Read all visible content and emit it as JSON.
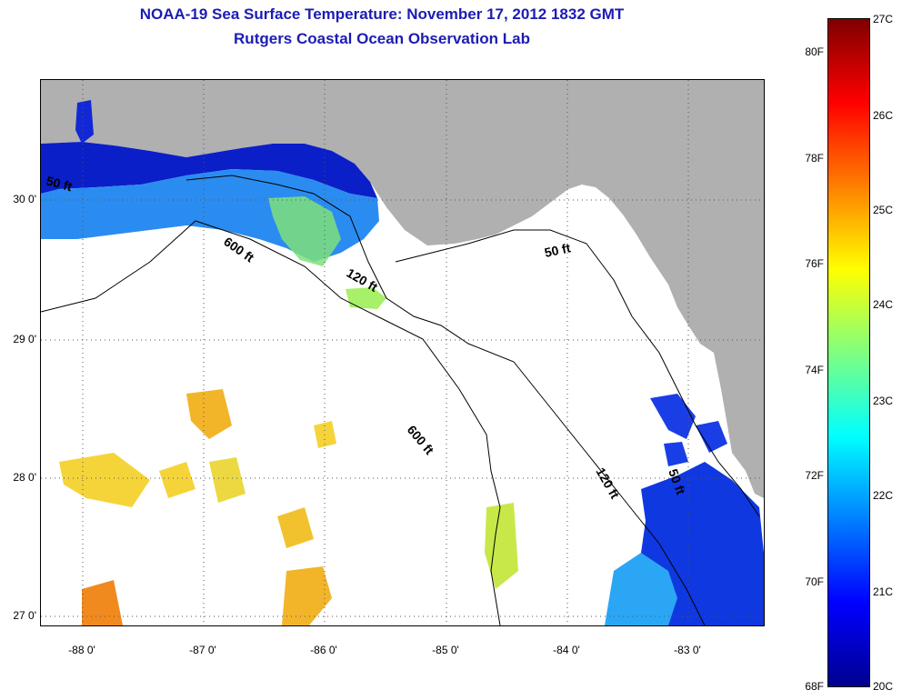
{
  "title": {
    "line1": "NOAA-19 Sea Surface Temperature:  November 17, 2012 1832 GMT",
    "line2": "Rutgers Coastal Ocean Observation Lab"
  },
  "map": {
    "lat_ticks": [
      "30 0'",
      "29 0'",
      "28 0'",
      "27 0'"
    ],
    "lon_ticks": [
      "-88 0'",
      "-87 0'",
      "-86 0'",
      "-85 0'",
      "-84 0'",
      "-83 0'"
    ],
    "depth_labels": [
      "50 ft",
      "50 ft",
      "50 ft",
      "120 ft",
      "120 ft",
      "600 ft",
      "600 ft"
    ],
    "colors": {
      "land": "#b0b0b0",
      "ocean_cloud": "#ffffff",
      "contour": "#000000"
    }
  },
  "colorbar": {
    "fahrenheit": [
      "80F",
      "78F",
      "76F",
      "74F",
      "72F",
      "70F",
      "68F"
    ],
    "celsius": [
      "27C",
      "26C",
      "25C",
      "24C",
      "23C",
      "22C",
      "21C",
      "20C"
    ],
    "range_c": [
      20,
      27
    ],
    "colormap": "jet"
  }
}
